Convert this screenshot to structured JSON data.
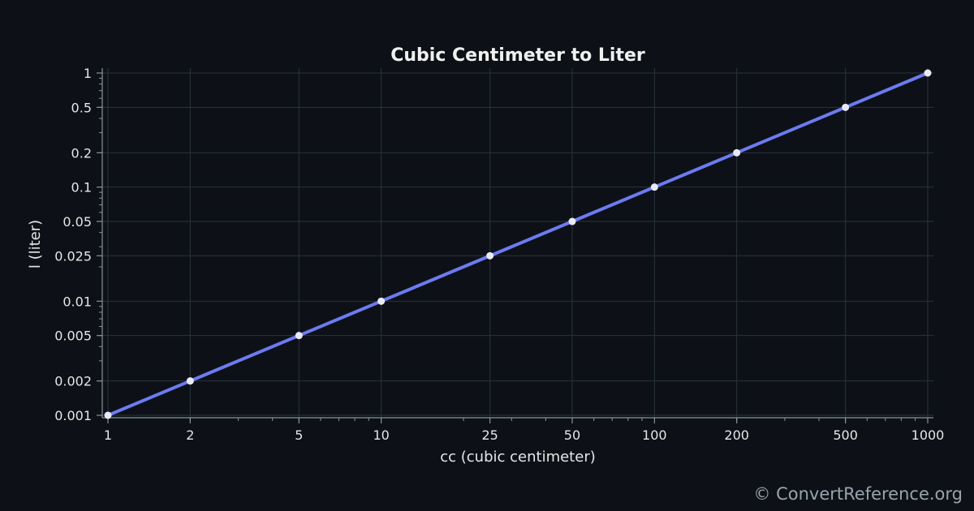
{
  "chart_data": {
    "type": "line",
    "title": "Cubic Centimeter to Liter",
    "xlabel": "cc (cubic centimeter)",
    "ylabel": "l (liter)",
    "x_scale": "log",
    "y_scale": "log",
    "xlim": [
      1,
      1000
    ],
    "ylim": [
      0.001,
      1
    ],
    "x_ticks": [
      1,
      2,
      5,
      10,
      25,
      50,
      100,
      200,
      500,
      1000
    ],
    "x_tick_labels": [
      "1",
      "2",
      "5",
      "10",
      "25",
      "50",
      "100",
      "200",
      "500",
      "1000"
    ],
    "y_ticks": [
      0.001,
      0.002,
      0.005,
      0.01,
      0.025,
      0.05,
      0.1,
      0.2,
      0.5,
      1
    ],
    "y_tick_labels": [
      "0.001",
      "0.002",
      "0.005",
      "0.01",
      "0.025",
      "0.05",
      "0.1",
      "0.2",
      "0.5",
      "1"
    ],
    "grid": true,
    "series": [
      {
        "x": [
          1,
          2,
          5,
          10,
          25,
          50,
          100,
          200,
          500,
          1000
        ],
        "y": [
          0.001,
          0.002,
          0.005,
          0.01,
          0.025,
          0.05,
          0.1,
          0.2,
          0.5,
          1
        ],
        "color": "#6c7bf0",
        "marker_color": "#e8eaf6"
      }
    ]
  },
  "watermark": "© ConvertReference.org",
  "colors": {
    "background": "#0d1117",
    "grid": "#2a323c",
    "axis": "#8a939c",
    "text": "#e6e6e6"
  }
}
